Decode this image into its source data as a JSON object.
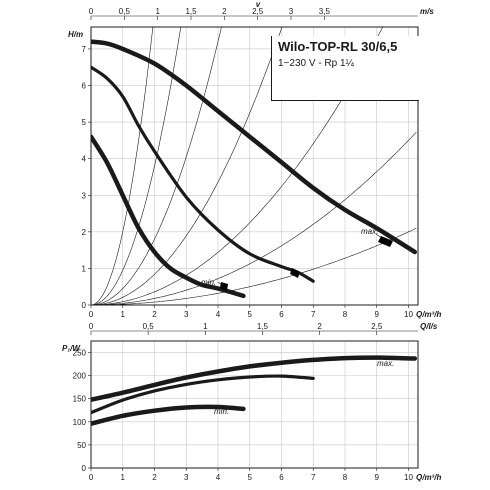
{
  "title": {
    "main": "Wilo-TOP-RL 30/6,5",
    "sub": "1~230 V - Rp 1¼"
  },
  "chart_data": [
    {
      "type": "line",
      "name": "pump-curve",
      "xlabel": "Q/m³/h",
      "ylabel": "H/m",
      "xlim": [
        0,
        10.3
      ],
      "ylim": [
        0,
        7.6
      ],
      "x_ticks": [
        "0",
        "1",
        "2",
        "3",
        "4",
        "5",
        "6",
        "7",
        "8",
        "9",
        "10"
      ],
      "y_ticks": [
        "0",
        "1",
        "2",
        "3",
        "4",
        "5",
        "6",
        "7"
      ],
      "top_axis": {
        "label": "v",
        "unit": "m/s",
        "ticks": [
          "0",
          "0,5",
          "1",
          "1,5",
          "2",
          "2,5",
          "3",
          "3,5"
        ],
        "tick_q": [
          0,
          1.05,
          2.1,
          3.15,
          4.2,
          5.25,
          6.3,
          7.35
        ]
      },
      "grid": true,
      "series": [
        {
          "name": "max.",
          "x": [
            0,
            0.5,
            1,
            2,
            3,
            4,
            5,
            6,
            7,
            8,
            9,
            10.2
          ],
          "y": [
            7.2,
            7.15,
            7.0,
            6.6,
            6.0,
            5.3,
            4.6,
            3.9,
            3.2,
            2.6,
            2.1,
            1.45
          ]
        },
        {
          "name": "",
          "x": [
            0,
            0.5,
            1,
            1.5,
            2,
            3,
            4,
            5,
            6,
            6.5,
            7
          ],
          "y": [
            6.5,
            6.2,
            5.7,
            4.9,
            4.2,
            2.95,
            2.05,
            1.4,
            1.05,
            0.9,
            0.65
          ]
        },
        {
          "name": "min.",
          "x": [
            0,
            0.5,
            1,
            1.5,
            2,
            2.5,
            3,
            3.5,
            4,
            4.8
          ],
          "y": [
            4.6,
            3.9,
            3.0,
            2.1,
            1.45,
            1.0,
            0.75,
            0.55,
            0.45,
            0.25
          ]
        }
      ],
      "system_curve_k": [
        2.0,
        0.95,
        0.45,
        0.21,
        0.09,
        0.045,
        0.02
      ],
      "annotations": [
        "max.",
        "min."
      ]
    },
    {
      "type": "line",
      "name": "power-curve",
      "xlabel": "Q/m³/h",
      "ylabel": "P₁/W",
      "xlim": [
        0,
        10.3
      ],
      "ylim": [
        0,
        275
      ],
      "x_ticks": [
        "0",
        "1",
        "2",
        "3",
        "4",
        "5",
        "6",
        "7",
        "8",
        "9",
        "10"
      ],
      "y_ticks": [
        "0",
        "50",
        "100",
        "150",
        "200",
        "250"
      ],
      "top_axis": {
        "label": "Q/l/s",
        "ticks": [
          "0",
          "0,5",
          "1",
          "1,5",
          "2",
          "2,5"
        ],
        "tick_q": [
          0,
          1.8,
          3.6,
          5.4,
          7.2,
          9.0
        ]
      },
      "grid": true,
      "series": [
        {
          "name": "max.",
          "x": [
            0,
            1,
            2,
            3,
            4,
            5,
            6,
            7,
            8,
            9,
            10.2
          ],
          "y": [
            148,
            163,
            180,
            196,
            209,
            220,
            228,
            234,
            238,
            239,
            237
          ]
        },
        {
          "name": "",
          "x": [
            0,
            1,
            2,
            3,
            4,
            5,
            6,
            7
          ],
          "y": [
            120,
            147,
            167,
            181,
            191,
            197,
            199,
            194
          ]
        },
        {
          "name": "min.",
          "x": [
            0,
            1,
            2,
            3,
            4,
            4.8
          ],
          "y": [
            96,
            113,
            124,
            131,
            132,
            128
          ]
        }
      ],
      "annotations": [
        "max.",
        "min."
      ]
    }
  ]
}
